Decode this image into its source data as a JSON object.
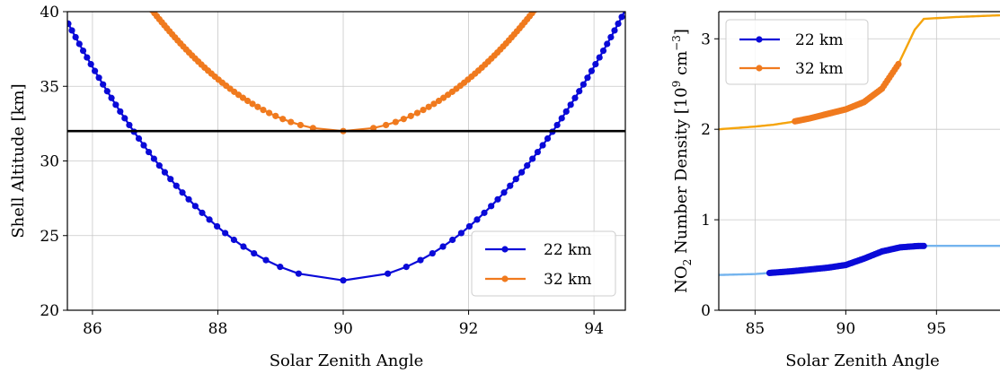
{
  "chart_data": [
    {
      "type": "line",
      "xlabel": "Solar Zenith Angle",
      "ylabel": "Shell Altitude [km]",
      "xlim": [
        85.6,
        94.5
      ],
      "ylim": [
        20,
        40
      ],
      "xticks": [
        86,
        88,
        90,
        92,
        94
      ],
      "yticks": [
        20,
        25,
        30,
        35,
        40
      ],
      "grid": true,
      "legend_position": "lower-right",
      "hline": {
        "y": 32,
        "color": "#000000"
      },
      "series": [
        {
          "name": "22 km",
          "color": "#0a0ad8",
          "min_x": 90,
          "min_y": 22,
          "points_per_side": 40,
          "half_span": 4.5,
          "y_at_span": 40.1
        },
        {
          "name": "32 km",
          "color": "#f07a1e",
          "min_x": 90,
          "min_y": 32,
          "points_per_side": 40,
          "half_span": 3.05,
          "y_at_span": 40.1
        }
      ]
    },
    {
      "type": "line",
      "xlabel": "Solar Zenith Angle",
      "ylabel": "NO$_2$ Number Density [10$^9$ cm$^{-3}$]",
      "ylabel_parts": {
        "pre": "NO",
        "sub": "2",
        "mid": " Number Density [10",
        "sup1": "9",
        "mid2": " cm",
        "sup2": "−3",
        "post": "]"
      },
      "xlim": [
        83,
        98.5
      ],
      "ylim": [
        0,
        3.3
      ],
      "xticks": [
        85,
        90,
        95
      ],
      "yticks": [
        0,
        1,
        2,
        3
      ],
      "grid": true,
      "legend_position": "top-left",
      "series": [
        {
          "name": "22 km",
          "color": "#0a0ad8",
          "line_color": "#74b4ee",
          "curve": [
            [
              83,
              0.39
            ],
            [
              85,
              0.4
            ],
            [
              86,
              0.415
            ],
            [
              87,
              0.43
            ],
            [
              88,
              0.45
            ],
            [
              89,
              0.47
            ],
            [
              90,
              0.5
            ],
            [
              91,
              0.57
            ],
            [
              92,
              0.65
            ],
            [
              93,
              0.695
            ],
            [
              94,
              0.71
            ],
            [
              95,
              0.712
            ],
            [
              96,
              0.712
            ],
            [
              97,
              0.712
            ],
            [
              98.5,
              0.712
            ]
          ],
          "marker_range": [
            85.8,
            94.3
          ]
        },
        {
          "name": "32 km",
          "color": "#f07a1e",
          "line_color": "#f5a40c",
          "curve": [
            [
              83,
              2.0
            ],
            [
              85,
              2.03
            ],
            [
              86,
              2.05
            ],
            [
              87,
              2.08
            ],
            [
              88,
              2.12
            ],
            [
              89,
              2.17
            ],
            [
              90,
              2.22
            ],
            [
              91,
              2.3
            ],
            [
              92,
              2.45
            ],
            [
              92.9,
              2.72
            ],
            [
              93.8,
              3.1
            ],
            [
              94.3,
              3.22
            ],
            [
              96,
              3.24
            ],
            [
              98.5,
              3.26
            ]
          ],
          "marker_range": [
            87.2,
            92.9
          ]
        }
      ]
    }
  ]
}
